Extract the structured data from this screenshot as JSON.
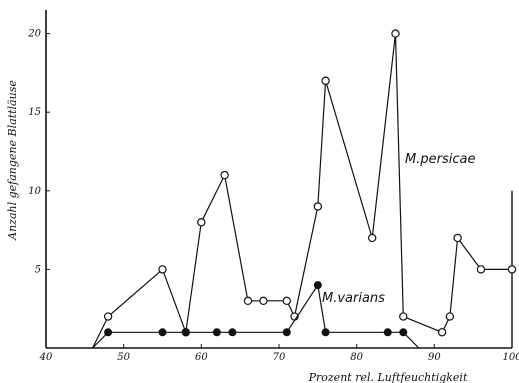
{
  "chart_data": {
    "type": "line",
    "title": "",
    "xlabel": "Prozent rel. Luftfeuchtigkeit",
    "ylabel": "Anzahl gefangene Blattläuse",
    "xlim": [
      40,
      100
    ],
    "ylim": [
      0,
      21.5
    ],
    "x_ticks": [
      40,
      50,
      60,
      70,
      80,
      90,
      100
    ],
    "y_ticks": [
      5,
      10,
      15,
      20
    ],
    "grid": false,
    "series": [
      {
        "name": "M.persicae",
        "marker": "open-circle",
        "points": [
          [
            46,
            0
          ],
          [
            48,
            2
          ],
          [
            55,
            5
          ],
          [
            58,
            1
          ],
          [
            60,
            8
          ],
          [
            63,
            11
          ],
          [
            66,
            3
          ],
          [
            68,
            3
          ],
          [
            71,
            3
          ],
          [
            72,
            2
          ],
          [
            75,
            9
          ],
          [
            76,
            17
          ],
          [
            82,
            7
          ],
          [
            85,
            20
          ],
          [
            86,
            2
          ],
          [
            91,
            1
          ],
          [
            92,
            2
          ],
          [
            93,
            7
          ],
          [
            96,
            5
          ],
          [
            100,
            5
          ]
        ]
      },
      {
        "name": "M.varians",
        "marker": "filled-circle",
        "points": [
          [
            46,
            0
          ],
          [
            48,
            1
          ],
          [
            55,
            1
          ],
          [
            58,
            1
          ],
          [
            62,
            1
          ],
          [
            64,
            1
          ],
          [
            71,
            1
          ],
          [
            75,
            4
          ],
          [
            76,
            1
          ],
          [
            84,
            1
          ],
          [
            86,
            1
          ],
          [
            88,
            0
          ]
        ]
      }
    ],
    "annotations": [
      {
        "text": "M.persicae",
        "series": "M.persicae"
      },
      {
        "text": "M.varians",
        "series": "M.varians"
      }
    ],
    "colors": {
      "ink": "#111111",
      "background": "#ffffff"
    }
  }
}
